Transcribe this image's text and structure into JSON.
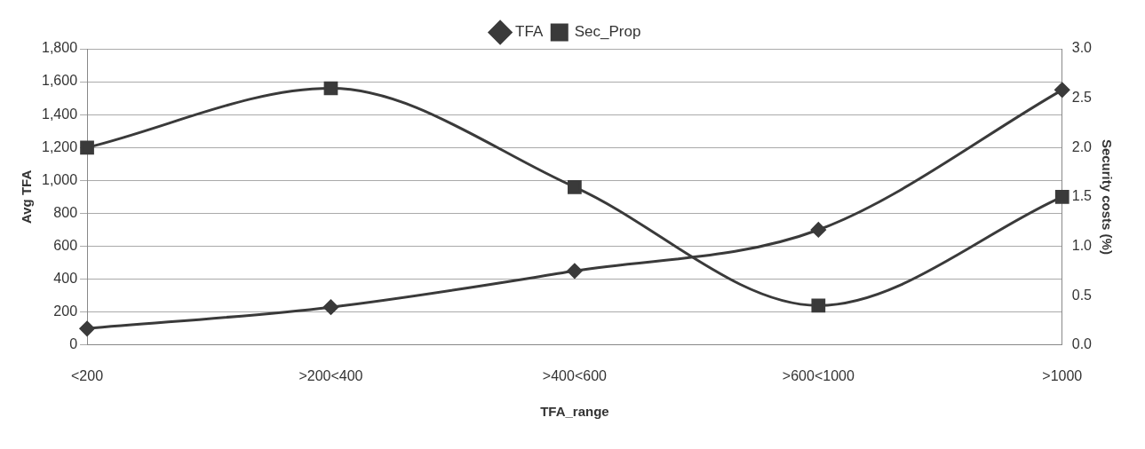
{
  "chart_data": {
    "type": "line",
    "xlabel": "TFA_range",
    "ylabel": "Avg TFA",
    "y2label": "Security costs (%)",
    "categories": [
      "<200",
      ">200<400",
      ">400<600",
      ">600<1000",
      ">1000"
    ],
    "series": [
      {
        "name": "TFA",
        "color": "#3a3a3a",
        "marker": "diamond",
        "values": [
          100,
          230,
          450,
          700,
          1550
        ]
      },
      {
        "name": "Sec_Prop",
        "color": "#3a3a3a",
        "marker": "square",
        "axis": "y2",
        "values": [
          2.0,
          2.6,
          1.6,
          0.4,
          1.5
        ]
      }
    ],
    "ylim": [
      0,
      1800
    ],
    "yticks": [
      {
        "value": 0,
        "label": "0"
      },
      {
        "value": 200,
        "label": "200"
      },
      {
        "value": 400,
        "label": "400"
      },
      {
        "value": 600,
        "label": "600"
      },
      {
        "value": 800,
        "label": "800"
      },
      {
        "value": 1000,
        "label": "1,000"
      },
      {
        "value": 1200,
        "label": "1,200"
      },
      {
        "value": 1400,
        "label": "1,400"
      },
      {
        "value": 1600,
        "label": "1,600"
      },
      {
        "value": 1800,
        "label": "1,800"
      }
    ],
    "y2lim": [
      0,
      3
    ],
    "y2ticks": [
      {
        "value": 0,
        "label": "0.0"
      },
      {
        "value": 0.5,
        "label": "0.5"
      },
      {
        "value": 1,
        "label": "1.0"
      },
      {
        "value": 1.5,
        "label": "1.5"
      },
      {
        "value": 2,
        "label": "2.0"
      },
      {
        "value": 2.5,
        "label": "2.5"
      },
      {
        "value": 3,
        "label": "3.0"
      }
    ],
    "grid": "y",
    "legend": "top right",
    "line_style": "solid"
  }
}
